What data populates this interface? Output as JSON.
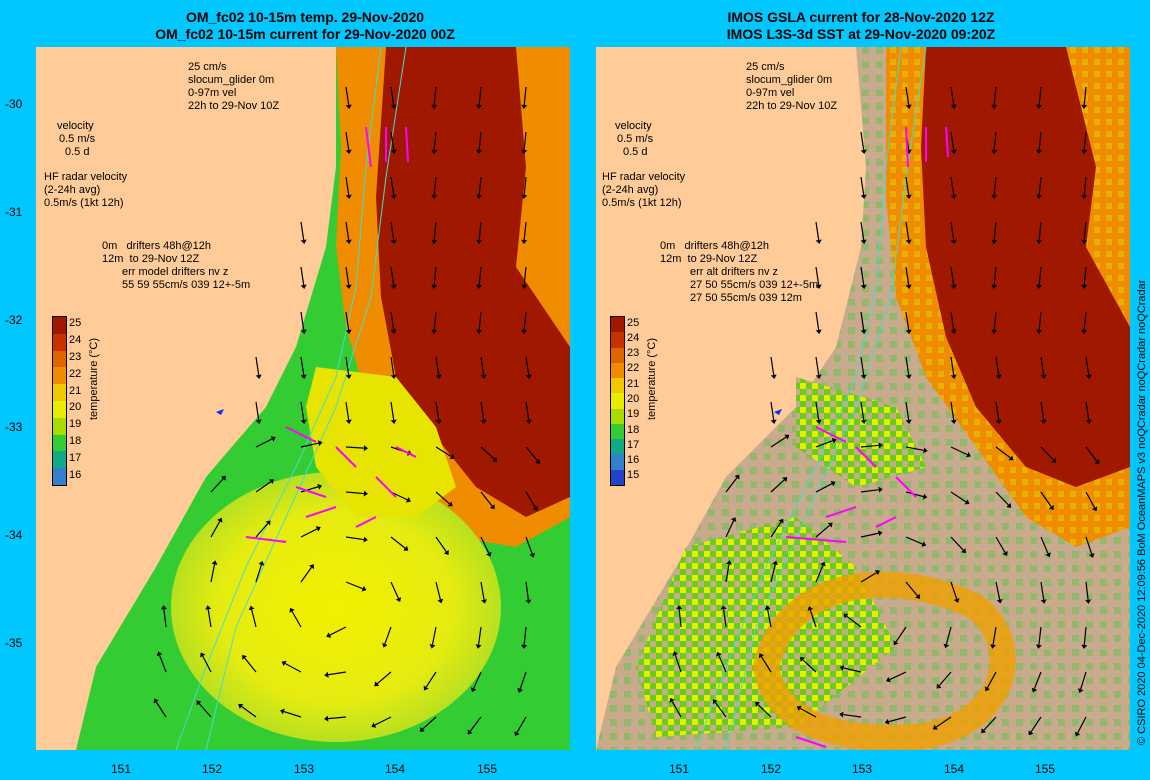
{
  "left": {
    "title_line1": "OM_fc02 10-15m temp. 29-Nov-2020",
    "title_line2": "OM_fc02 10-15m current for 29-Nov-2020 00Z",
    "legend_glider": [
      "25 cm/s",
      "slocum_glider 0m",
      "0-97m vel",
      "22h to 29-Nov 10Z"
    ],
    "legend_velocity": [
      "velocity",
      "0.5 m/s",
      "0.5 d"
    ],
    "legend_hf": [
      "HF radar velocity",
      "(2-24h avg)",
      "0.5m/s (1kt 12h)"
    ],
    "legend_drifters": [
      "0m",
      "drifters 48h@12h",
      "12m",
      "to 29-Nov 12Z",
      "err model drifters nv z",
      "55 59 55cm/s 039 12+-5m"
    ],
    "colorbar_labels": [
      "25",
      "24",
      "23",
      "22",
      "21",
      "20",
      "19",
      "18",
      "17",
      "16"
    ],
    "colorbar_title": "temperature (°C)"
  },
  "right": {
    "title_line1": "IMOS GSLA current for 28-Nov-2020 12Z",
    "title_line2": "IMOS L3S-3d SST at 29-Nov-2020 09:20Z",
    "legend_glider": [
      "25 cm/s",
      "slocum_glider 0m",
      "0-97m vel",
      "22h to 29-Nov 10Z"
    ],
    "legend_velocity": [
      "velocity",
      "0.5 m/s",
      "0.5 d"
    ],
    "legend_hf": [
      "HF radar velocity",
      "(2-24h avg)",
      "0.5m/s (1kt 12h)"
    ],
    "legend_drifters": [
      "0m",
      "drifters 48h@12h",
      "12m",
      "to 29-Nov 12Z",
      "err alt drifters nv z",
      "27 50 55cm/s 039 12+-5m",
      "27 50 55cm/s 039 12m"
    ],
    "colorbar_labels": [
      "25",
      "24",
      "23",
      "22",
      "21",
      "20",
      "19",
      "18",
      "17",
      "16",
      "15"
    ],
    "colorbar_title": "temperature (°C)"
  },
  "axes": {
    "y_ticks": [
      "-30",
      "-31",
      "-32",
      "-33",
      "-34",
      "-35"
    ],
    "x_ticks": [
      "151",
      "152",
      "153",
      "154",
      "155"
    ]
  },
  "credit": "© CSIRO 2020   04-Dec-2020 12:09:56 BoM OceanMAPS v3 noQCradar noQCradar noQCradar",
  "colors": {
    "background": "#00c8ff",
    "land": "#ffcc99",
    "warm": "#a01800",
    "orange": "#f08c00",
    "yellow": "#e8ec00",
    "green": "#33cc33",
    "cloud": "#c8aa8c",
    "drifter": "#ff00ff",
    "isobath": "#44ddcc"
  }
}
